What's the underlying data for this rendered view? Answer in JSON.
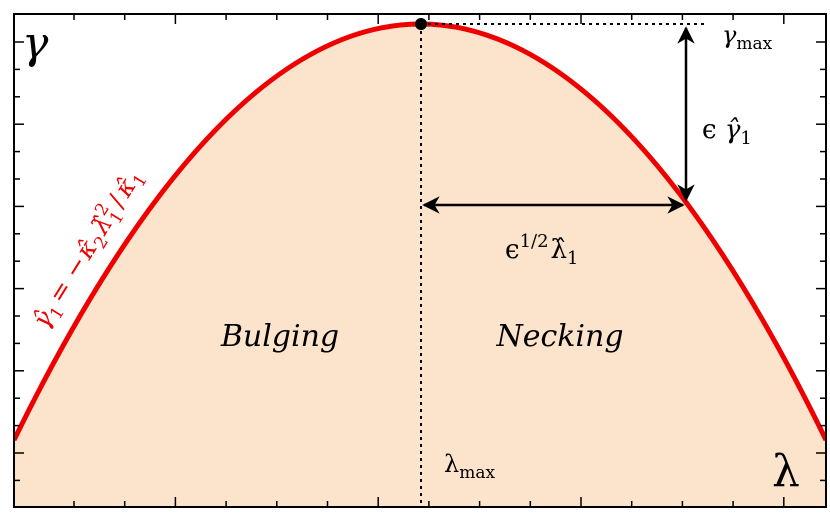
{
  "axes": {
    "y_label": "γ",
    "x_label": "λ"
  },
  "annotations": {
    "gamma_max": {
      "symbol": "γ",
      "subscript": "max"
    },
    "lambda_max": {
      "symbol": "λ",
      "subscript": "max"
    },
    "delta_gamma": {
      "prefix": "ϵ",
      "symbol": "γ̂",
      "subscript": "1"
    },
    "delta_lambda": {
      "prefix": "ϵ",
      "superscript": "1/2",
      "symbol": "λ̂",
      "subscript": "1"
    }
  },
  "regions": [
    "Bulging",
    "Necking"
  ],
  "curve_label": {
    "lhs": "γ̂",
    "lhs_sub": "1",
    "eq": "= −",
    "k2": "κ̂",
    "k2_sub": "2",
    "l": "λ̂",
    "l_sup": "2",
    "l_sub": "1",
    "div": "/",
    "k1": "κ̂",
    "k1_sub": "1"
  }
}
